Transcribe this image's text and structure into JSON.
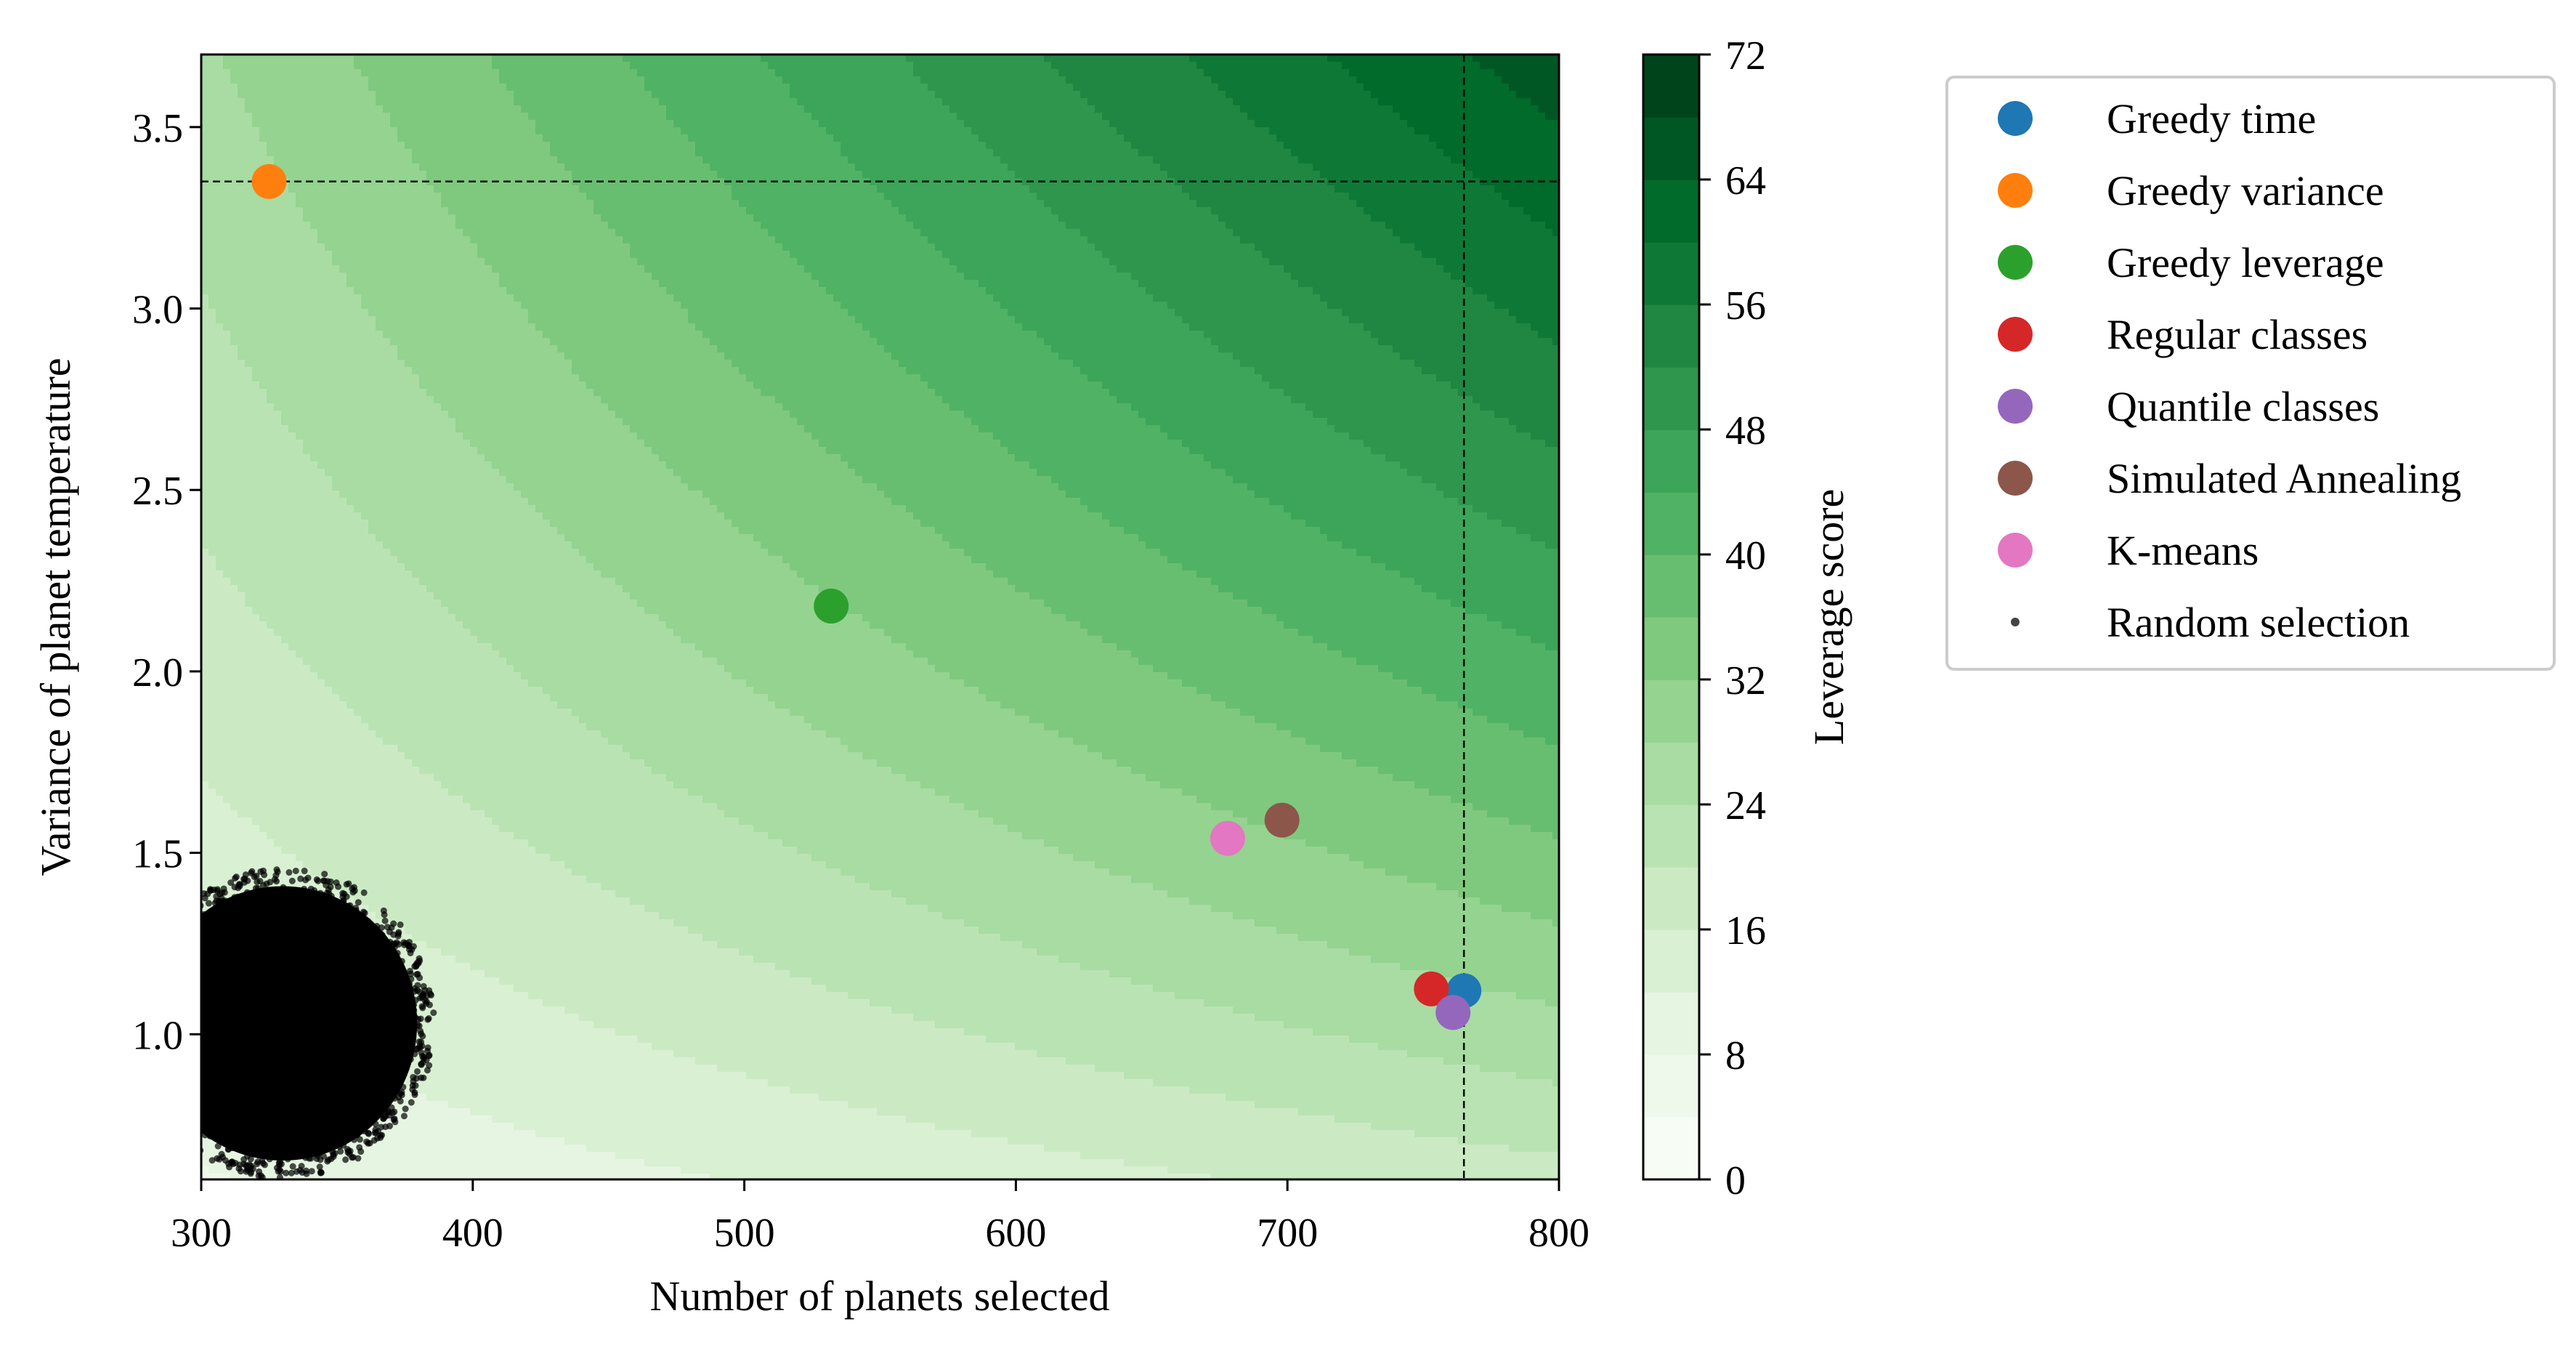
{
  "chart_data": {
    "type": "scatter",
    "xlabel": "Number of planets selected",
    "ylabel": "Variance of planet temperature",
    "xlim": [
      300,
      800
    ],
    "ylim": [
      0.6,
      3.7
    ],
    "xticks": [
      300,
      400,
      500,
      600,
      700,
      800
    ],
    "yticks": [
      1.0,
      1.5,
      2.0,
      2.5,
      3.0,
      3.5
    ],
    "background_contour": {
      "label": "Leverage score",
      "model": "score = 11 * (x / 300)^0.9 * y^0.7",
      "levels": [
        0,
        4,
        8,
        12,
        16,
        20,
        24,
        28,
        32,
        36,
        40,
        44,
        48,
        52,
        56,
        60,
        64,
        68,
        72
      ],
      "colorbar_ticks": [
        0,
        8,
        16,
        24,
        32,
        40,
        48,
        56,
        64,
        72
      ],
      "colormap": "Greens"
    },
    "reference_lines": {
      "vertical_x": 765,
      "horizontal_y": 3.35,
      "style": "dashed"
    },
    "series": [
      {
        "name": "Greedy time",
        "color": "#1f77b4",
        "x": 765,
        "y": 1.12
      },
      {
        "name": "Greedy variance",
        "color": "#ff7f0e",
        "x": 325,
        "y": 3.35
      },
      {
        "name": "Greedy leverage",
        "color": "#2ca02c",
        "x": 532,
        "y": 2.18
      },
      {
        "name": "Regular classes",
        "color": "#d62728",
        "x": 753,
        "y": 1.125
      },
      {
        "name": "Quantile classes",
        "color": "#9467bd",
        "x": 761,
        "y": 1.06
      },
      {
        "name": "Simulated Annealing",
        "color": "#8c564b",
        "x": 698,
        "y": 1.59
      },
      {
        "name": "K-means",
        "color": "#e377c2",
        "x": 678,
        "y": 1.54
      },
      {
        "name": "Random selection",
        "color": "#000000",
        "marker": "small-dot",
        "cluster": {
          "x_center": 330,
          "y_center": 1.03,
          "x_spread": 55,
          "y_spread": 0.42
        }
      }
    ],
    "legend_position": "outside-right-top"
  }
}
